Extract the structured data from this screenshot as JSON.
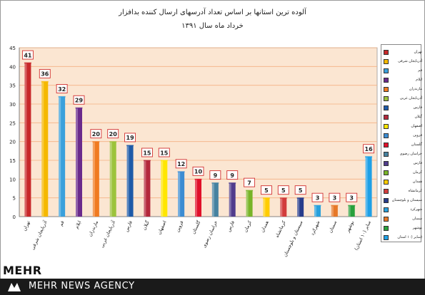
{
  "chart_data": {
    "type": "bar",
    "title": "آلوده ترین استانها بر اساس تعداد آدرسهای ارسال کننده بدافزار",
    "subtitle": "خرداد ماه سال ۱۳۹۱",
    "categories": [
      "تهران",
      "آذربایجان شرقی",
      "قم",
      "ایلام",
      "مازندران",
      "آذربایجان غربی",
      "فارس",
      "گیلان",
      "اصفهان",
      "قزوین",
      "گلستان",
      "خراسان رضوی",
      "فارس",
      "کرمان",
      "همدان",
      "کرمانشاه",
      "سیستان و بلوچستان",
      "شهرکرد",
      "سمنان",
      "بوشهر",
      "(سایر (۱۰ استان"
    ],
    "values": [
      41,
      36,
      32,
      29,
      20,
      20,
      19,
      15,
      15,
      12,
      10,
      9,
      9,
      7,
      5,
      5,
      5,
      3,
      3,
      3,
      16
    ],
    "colors": [
      "#c8282a",
      "#f5b800",
      "#3aa0dc",
      "#6a2a8c",
      "#f07a20",
      "#9cc33c",
      "#1e5aa8",
      "#b4283c",
      "#ffe600",
      "#3c8cd2",
      "#e0102a",
      "#4682a0",
      "#503c8c",
      "#78b428",
      "#ffcc00",
      "#d23c3c",
      "#283c8c",
      "#28a0dc",
      "#e67828",
      "#28a03c",
      "#1ea0e6"
    ],
    "ylim": [
      0,
      45
    ],
    "yticks": [
      0,
      5,
      10,
      15,
      20,
      25,
      30,
      35,
      40,
      45
    ],
    "grid": true,
    "legend_position": "right",
    "legend": [
      "تهران",
      "آذربایجان شرقی",
      "قم",
      "ایلام",
      "مازندران",
      "آذربایجان غربی",
      "فارس",
      "گیلان",
      "اصفهان",
      "قزوین",
      "گلستان",
      "خراسان رضوی",
      "فارس",
      "کرمان",
      "همدان",
      "کرمانشاه",
      "سیستان و بلوچستان",
      "شهرکرد",
      "سمنان",
      "بوشهر",
      "(سایر (۱۰ استان"
    ]
  },
  "colors": {
    "plot_background": "#fbe6d2",
    "grid": "#f4b183",
    "footer_bar": "#1a1a1a"
  },
  "footer": {
    "logo_text": "MEHR",
    "agency_text": "MEHR NEWS AGENCY"
  }
}
